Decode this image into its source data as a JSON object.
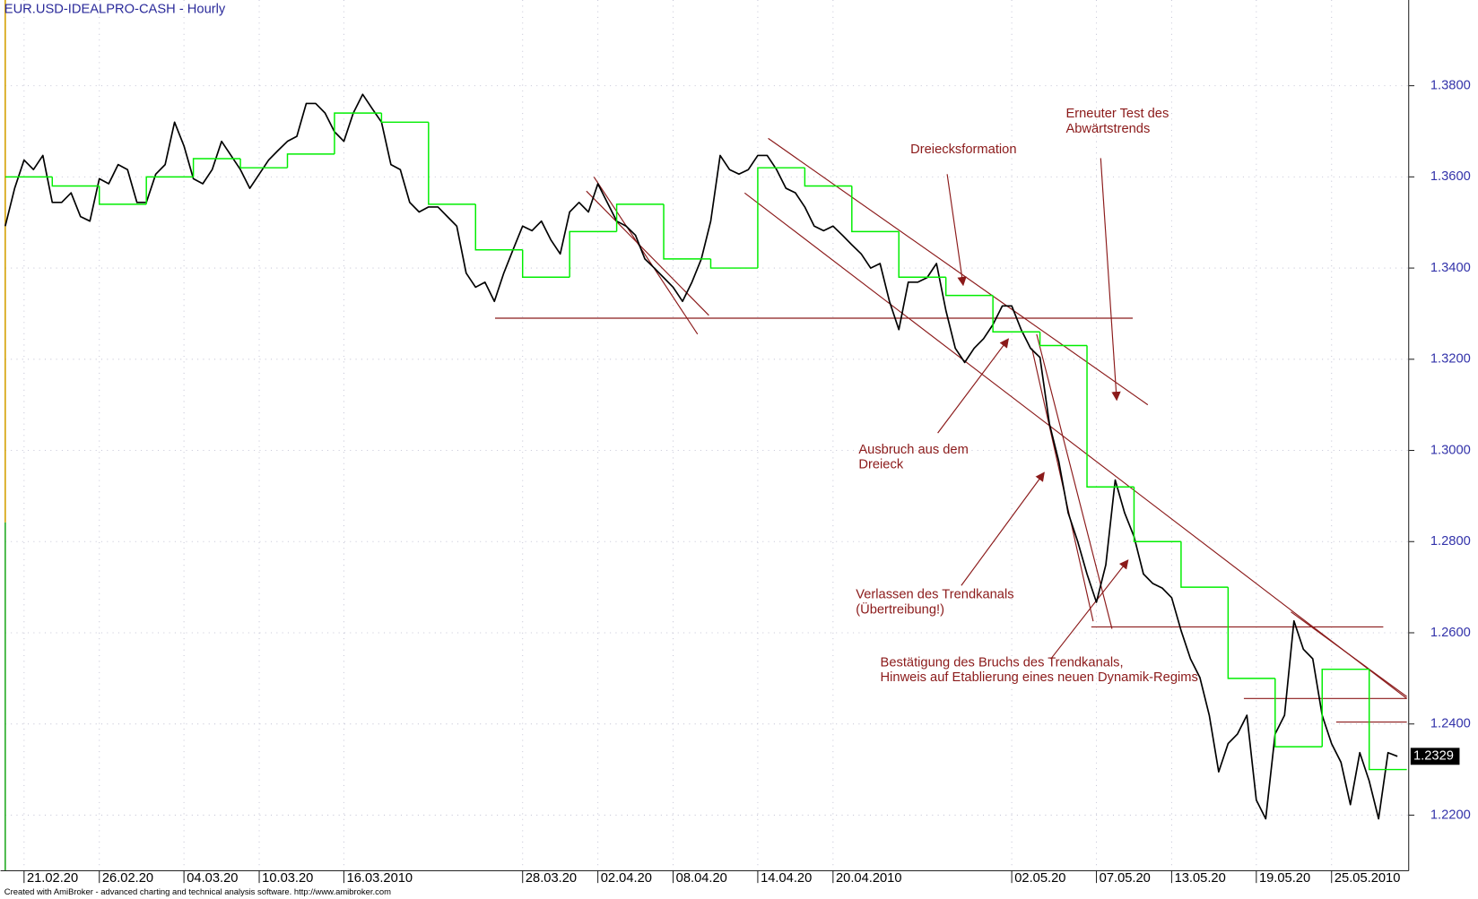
{
  "chart_data": {
    "type": "price",
    "title": "EUR.USD-IDEALPRO-CASH - Hourly",
    "footer": "Created with AmiBroker - advanced charting and technical analysis software. http://www.amibroker.com",
    "xlim": [
      0,
      149
    ],
    "ylim": [
      1.2078,
      1.3988
    ],
    "grid": true,
    "xticks": [
      {
        "value": 2,
        "label": "21.02.20"
      },
      {
        "value": 10,
        "label": "26.02.20"
      },
      {
        "value": 19,
        "label": "04.03.20"
      },
      {
        "value": 27,
        "label": "10.03.20"
      },
      {
        "value": 36,
        "label": "16.03.2010"
      },
      {
        "value": 55,
        "label": "28.03.20"
      },
      {
        "value": 63,
        "label": "02.04.20"
      },
      {
        "value": 71,
        "label": "08.04.20"
      },
      {
        "value": 80,
        "label": "14.04.20"
      },
      {
        "value": 88,
        "label": "20.04.2010"
      },
      {
        "value": 107,
        "label": "02.05.20"
      },
      {
        "value": 116,
        "label": "07.05.20"
      },
      {
        "value": 124,
        "label": "13.05.20"
      },
      {
        "value": 133,
        "label": "19.05.20"
      },
      {
        "value": 141,
        "label": "25.05.2010"
      }
    ],
    "yticks": [
      {
        "value": 1.22,
        "label": "1.2200"
      },
      {
        "value": 1.24,
        "label": "1.2400"
      },
      {
        "value": 1.26,
        "label": "1.2600"
      },
      {
        "value": 1.28,
        "label": "1.2800"
      },
      {
        "value": 1.3,
        "label": "1.3000"
      },
      {
        "value": 1.32,
        "label": "1.3200"
      },
      {
        "value": 1.34,
        "label": "1.3400"
      },
      {
        "value": 1.36,
        "label": "1.3600"
      },
      {
        "value": 1.38,
        "label": "1.3800"
      }
    ],
    "series": [
      {
        "color": "#000000",
        "values": [
          1.3492,
          1.3575,
          1.3637,
          1.3616,
          1.3647,
          1.3544,
          1.3544,
          1.3565,
          1.3513,
          1.3503,
          1.3596,
          1.3585,
          1.3627,
          1.3616,
          1.3544,
          1.3544,
          1.3606,
          1.3627,
          1.372,
          1.3668,
          1.3596,
          1.3585,
          1.3616,
          1.3678,
          1.3647,
          1.3616,
          1.3575,
          1.3606,
          1.3637,
          1.3658,
          1.3678,
          1.3689,
          1.3761,
          1.3761,
          1.374,
          1.3699,
          1.3678,
          1.374,
          1.3781,
          1.375,
          1.372,
          1.3627,
          1.3616,
          1.3544,
          1.3523,
          1.3534,
          1.3534,
          1.3513,
          1.3492,
          1.3389,
          1.3358,
          1.3369,
          1.3327,
          1.3389,
          1.3441,
          1.3492,
          1.3482,
          1.3503,
          1.3462,
          1.3431,
          1.3523,
          1.3544,
          1.3523,
          1.3585,
          1.3544,
          1.3503,
          1.3492,
          1.3472,
          1.342,
          1.34,
          1.3379,
          1.3358,
          1.3327,
          1.3369,
          1.342,
          1.3503,
          1.3647,
          1.3616,
          1.3606,
          1.3616,
          1.3647,
          1.3647,
          1.3616,
          1.3575,
          1.3565,
          1.3534,
          1.3492,
          1.3482,
          1.3492,
          1.3472,
          1.3451,
          1.3431,
          1.34,
          1.341,
          1.3327,
          1.3265,
          1.3369,
          1.3369,
          1.3379,
          1.341,
          1.3307,
          1.3224,
          1.3193,
          1.3224,
          1.3245,
          1.3276,
          1.3317,
          1.3317,
          1.3265,
          1.3224,
          1.3204,
          1.3059,
          1.2976,
          1.2863,
          1.2801,
          1.2729,
          1.2667,
          1.2749,
          1.2935,
          1.2863,
          1.2811,
          1.2729,
          1.2708,
          1.2698,
          1.2677,
          1.2605,
          1.2543,
          1.2502,
          1.2419,
          1.2295,
          1.2357,
          1.2378,
          1.2419,
          1.2233,
          1.2192,
          1.2378,
          1.2419,
          1.2626,
          1.2564,
          1.2543,
          1.2419,
          1.2357,
          1.2316,
          1.2223,
          1.2337,
          1.2275,
          1.2192,
          1.2337,
          1.2329
        ]
      },
      {
        "color": "#00ee00",
        "step": true,
        "x": [
          0,
          5,
          10,
          15,
          20,
          25,
          30,
          35,
          40,
          45,
          50,
          55,
          60,
          65,
          70,
          75,
          80,
          85,
          90,
          95,
          100,
          105,
          110,
          115,
          120,
          125,
          130,
          135,
          140,
          145
        ],
        "values": [
          1.36,
          1.358,
          1.354,
          1.36,
          1.364,
          1.362,
          1.365,
          1.374,
          1.372,
          1.354,
          1.344,
          1.338,
          1.348,
          1.354,
          1.342,
          1.34,
          1.362,
          1.358,
          1.348,
          1.338,
          1.334,
          1.326,
          1.323,
          1.292,
          1.28,
          1.27,
          1.25,
          1.235,
          1.252,
          1.23
        ]
      }
    ],
    "annotations": {
      "triangle": [
        "Dreiecksformation"
      ],
      "retest": [
        "Erneuter Test des",
        "Abwärtstrends"
      ],
      "breakout": [
        "Ausbruch aus dem",
        "Dreieck"
      ],
      "exit": [
        "Verlassen des Trendkanals",
        "(Übertreibung!)"
      ],
      "confirm": [
        "Bestätigung des Bruchs des Trendkanals,",
        "Hinweis auf Etablierung eines neuen Dynamik-Regims"
      ]
    }
  }
}
